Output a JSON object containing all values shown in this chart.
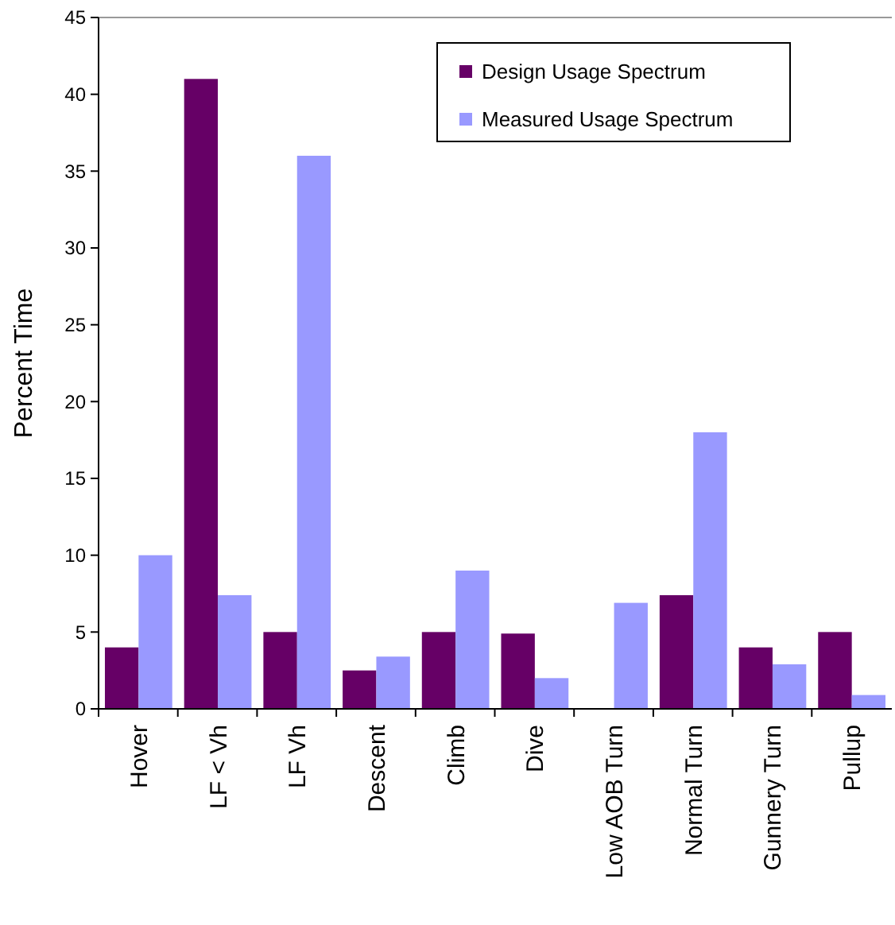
{
  "chart_data": {
    "type": "bar",
    "ylabel": "Percent Time",
    "categories": [
      "Hover",
      "LF < Vh",
      "LF Vh",
      "Descent",
      "Climb",
      "Dive",
      "Low AOB Turn",
      "Normal Turn",
      "Gunnery Turn",
      "Pullup"
    ],
    "series": [
      {
        "name": "Design Usage Spectrum",
        "color": "#660066",
        "values": [
          4,
          41,
          5,
          2.5,
          5,
          4.9,
          0,
          7.4,
          4,
          5
        ]
      },
      {
        "name": "Measured Usage Spectrum",
        "color": "#9999ff",
        "values": [
          10,
          7.4,
          36,
          3.4,
          9,
          2,
          6.9,
          18,
          2.9,
          0.9
        ]
      }
    ],
    "ylim": [
      0,
      45
    ],
    "yticks": [
      0,
      5,
      10,
      15,
      20,
      25,
      30,
      35,
      40,
      45
    ],
    "grid": false,
    "legend": "top right"
  }
}
